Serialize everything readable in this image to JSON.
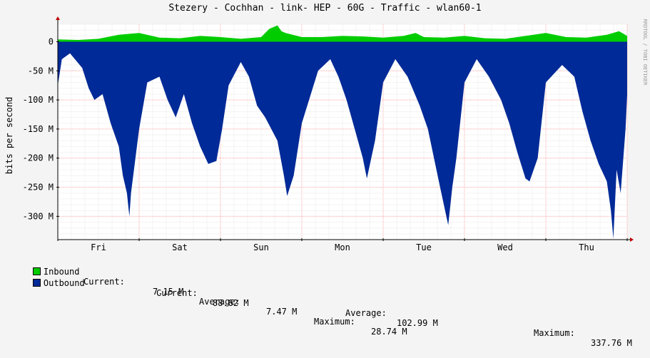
{
  "title": "Stezery - Cochhan - link- HEP - 60G - Traffic - wlan60-1",
  "watermark": "RRDTOOL / TOBI OETIKER",
  "colors": {
    "inbound": "#00cc00",
    "outbound": "#002a97",
    "grid_minor": "#e8e8e8",
    "grid_major": "#ffaaaa",
    "axis": "#000000",
    "arrow": "#c00000",
    "plot_bg": "#ffffff",
    "canvas_bg": "#f4f4f4"
  },
  "legend": [
    {
      "name": "Inbound",
      "current_label": "Current:",
      "current": "7.15 M",
      "average_label": "Average:",
      "average": "7.47 M",
      "maximum_label": "Maximum:",
      "maximum": "28.74 M"
    },
    {
      "name": "Outbound",
      "current_label": "Current:",
      "current": "88.62 M",
      "average_label": "Average:",
      "average": "102.99 M",
      "maximum_label": "Maximum:",
      "maximum": "337.76 M"
    }
  ],
  "chart_data": {
    "type": "area",
    "title": "Stezery - Cochhan - link- HEP - 60G - Traffic - wlan60-1",
    "ylabel": "bits per second",
    "y_unit": "M",
    "ylim": [
      -340,
      30
    ],
    "y_ticks": [
      0,
      -50,
      -100,
      -150,
      -200,
      -250,
      -300
    ],
    "y_tick_labels": [
      "0",
      "-50 M",
      "-100 M",
      "-150 M",
      "-200 M",
      "-250 M",
      "-300 M"
    ],
    "x_days": [
      "Fri",
      "Sat",
      "Sun",
      "Mon",
      "Tue",
      "Wed",
      "Thu"
    ],
    "x_range_days": [
      -0.5,
      6.5
    ],
    "grid": true,
    "series": [
      {
        "name": "Inbound",
        "x": [
          -0.5,
          -0.25,
          0,
          0.25,
          0.5,
          0.75,
          1,
          1.25,
          1.5,
          1.75,
          2,
          2.1,
          2.2,
          2.25,
          2.3,
          2.5,
          2.75,
          3,
          3.25,
          3.5,
          3.75,
          3.9,
          4,
          4.25,
          4.5,
          4.75,
          5,
          5.25,
          5.5,
          5.75,
          6,
          6.25,
          6.4,
          6.5
        ],
        "values": [
          4,
          3,
          5,
          12,
          15,
          7,
          6,
          10,
          8,
          5,
          8,
          22,
          28,
          18,
          15,
          8,
          8,
          10,
          9,
          7,
          10,
          15,
          8,
          7,
          10,
          6,
          5,
          10,
          15,
          8,
          7,
          12,
          18,
          10
        ]
      },
      {
        "name": "Outbound",
        "x": [
          -0.5,
          -0.45,
          -0.35,
          -0.2,
          -0.12,
          -0.05,
          0.05,
          0.15,
          0.25,
          0.3,
          0.35,
          0.38,
          0.4,
          0.5,
          0.6,
          0.75,
          0.85,
          0.95,
          1.05,
          1.15,
          1.25,
          1.35,
          1.45,
          1.52,
          1.6,
          1.75,
          1.85,
          1.95,
          2.05,
          2.2,
          2.28,
          2.32,
          2.4,
          2.5,
          2.7,
          2.85,
          2.95,
          3.05,
          3.15,
          3.25,
          3.3,
          3.4,
          3.5,
          3.65,
          3.8,
          3.95,
          4.05,
          4.2,
          4.3,
          4.35,
          4.4,
          4.5,
          4.65,
          4.8,
          4.95,
          5.05,
          5.15,
          5.25,
          5.3,
          5.4,
          5.5,
          5.7,
          5.85,
          5.95,
          6.05,
          6.15,
          6.25,
          6.3,
          6.33,
          6.37,
          6.42,
          6.48,
          6.5
        ],
        "values": [
          -75,
          -30,
          -20,
          -45,
          -80,
          -100,
          -90,
          -140,
          -180,
          -230,
          -260,
          -300,
          -260,
          -150,
          -70,
          -60,
          -100,
          -130,
          -90,
          -140,
          -180,
          -210,
          -205,
          -150,
          -75,
          -35,
          -60,
          -110,
          -130,
          -170,
          -230,
          -265,
          -230,
          -140,
          -50,
          -30,
          -60,
          -100,
          -150,
          -200,
          -235,
          -170,
          -70,
          -30,
          -60,
          -110,
          -150,
          -250,
          -315,
          -250,
          -200,
          -70,
          -30,
          -60,
          -100,
          -140,
          -190,
          -235,
          -240,
          -200,
          -70,
          -40,
          -60,
          -120,
          -170,
          -210,
          -240,
          -290,
          -338,
          -220,
          -260,
          -150,
          -90
        ]
      }
    ]
  }
}
